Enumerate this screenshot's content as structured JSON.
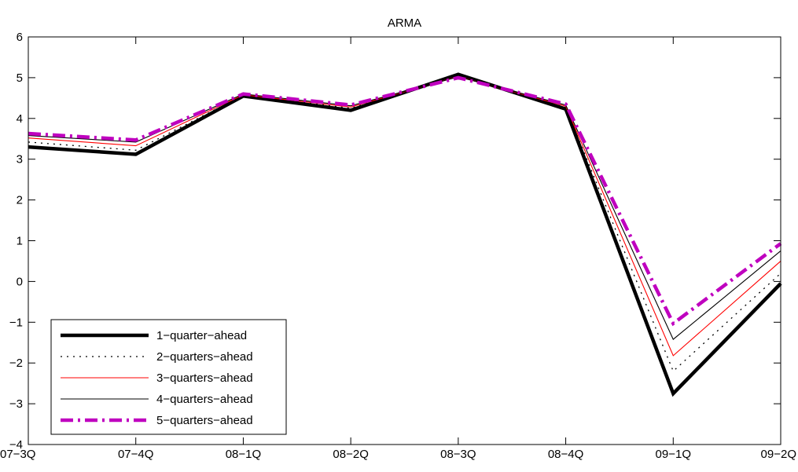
{
  "chart_data": {
    "type": "line",
    "title": "ARMA",
    "xlabel": "",
    "ylabel": "",
    "categories": [
      "07−3Q",
      "07−4Q",
      "08−1Q",
      "08−2Q",
      "08−3Q",
      "08−4Q",
      "09−1Q",
      "09−2Q"
    ],
    "ylim": [
      -4,
      6
    ],
    "yticks": [
      -4,
      -3,
      -2,
      -1,
      0,
      1,
      2,
      3,
      4,
      5,
      6
    ],
    "grid": false,
    "legend_position": "bottom-left",
    "series": [
      {
        "name": "1−quarter−ahead",
        "values": [
          3.3,
          3.12,
          4.55,
          4.2,
          5.08,
          4.23,
          -2.75,
          -0.05
        ],
        "color": "#000000",
        "style": "solid-thick"
      },
      {
        "name": "2−quarters−ahead",
        "values": [
          3.42,
          3.22,
          4.57,
          4.25,
          5.05,
          4.27,
          -2.2,
          0.2
        ],
        "color": "#000000",
        "style": "dotted"
      },
      {
        "name": "3−quarters−ahead",
        "values": [
          3.52,
          3.33,
          4.58,
          4.28,
          5.03,
          4.3,
          -1.82,
          0.5
        ],
        "color": "#ff0000",
        "style": "solid-thin"
      },
      {
        "name": "4−quarters−ahead",
        "values": [
          3.58,
          3.42,
          4.6,
          4.31,
          5.02,
          4.33,
          -1.42,
          0.75
        ],
        "color": "#000000",
        "style": "solid-thin"
      },
      {
        "name": "5−quarters−ahead",
        "values": [
          3.63,
          3.47,
          4.6,
          4.33,
          5.0,
          4.35,
          -1.03,
          0.93
        ],
        "color": "#bf00bf",
        "style": "dashdot-thick"
      }
    ]
  }
}
